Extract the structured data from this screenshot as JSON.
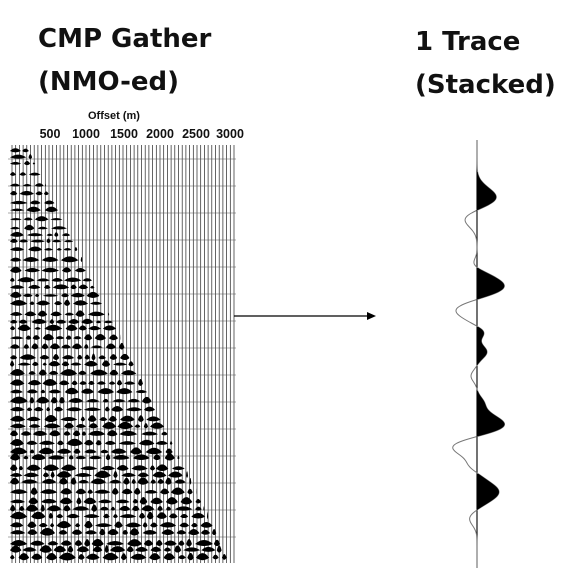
{
  "titles": {
    "gather_line1": "CMP Gather",
    "gather_line2": "(NMO-ed)",
    "trace_line1": "1 Trace",
    "trace_line2": "(Stacked)"
  },
  "gather_axis": {
    "label": "Offset (m)",
    "ticks": [
      "500",
      "1000",
      "1500",
      "2000",
      "2500",
      "3000"
    ]
  },
  "colors": {
    "wiggle": "#000000",
    "background": "#ffffff",
    "trace_line": "#777777"
  }
}
